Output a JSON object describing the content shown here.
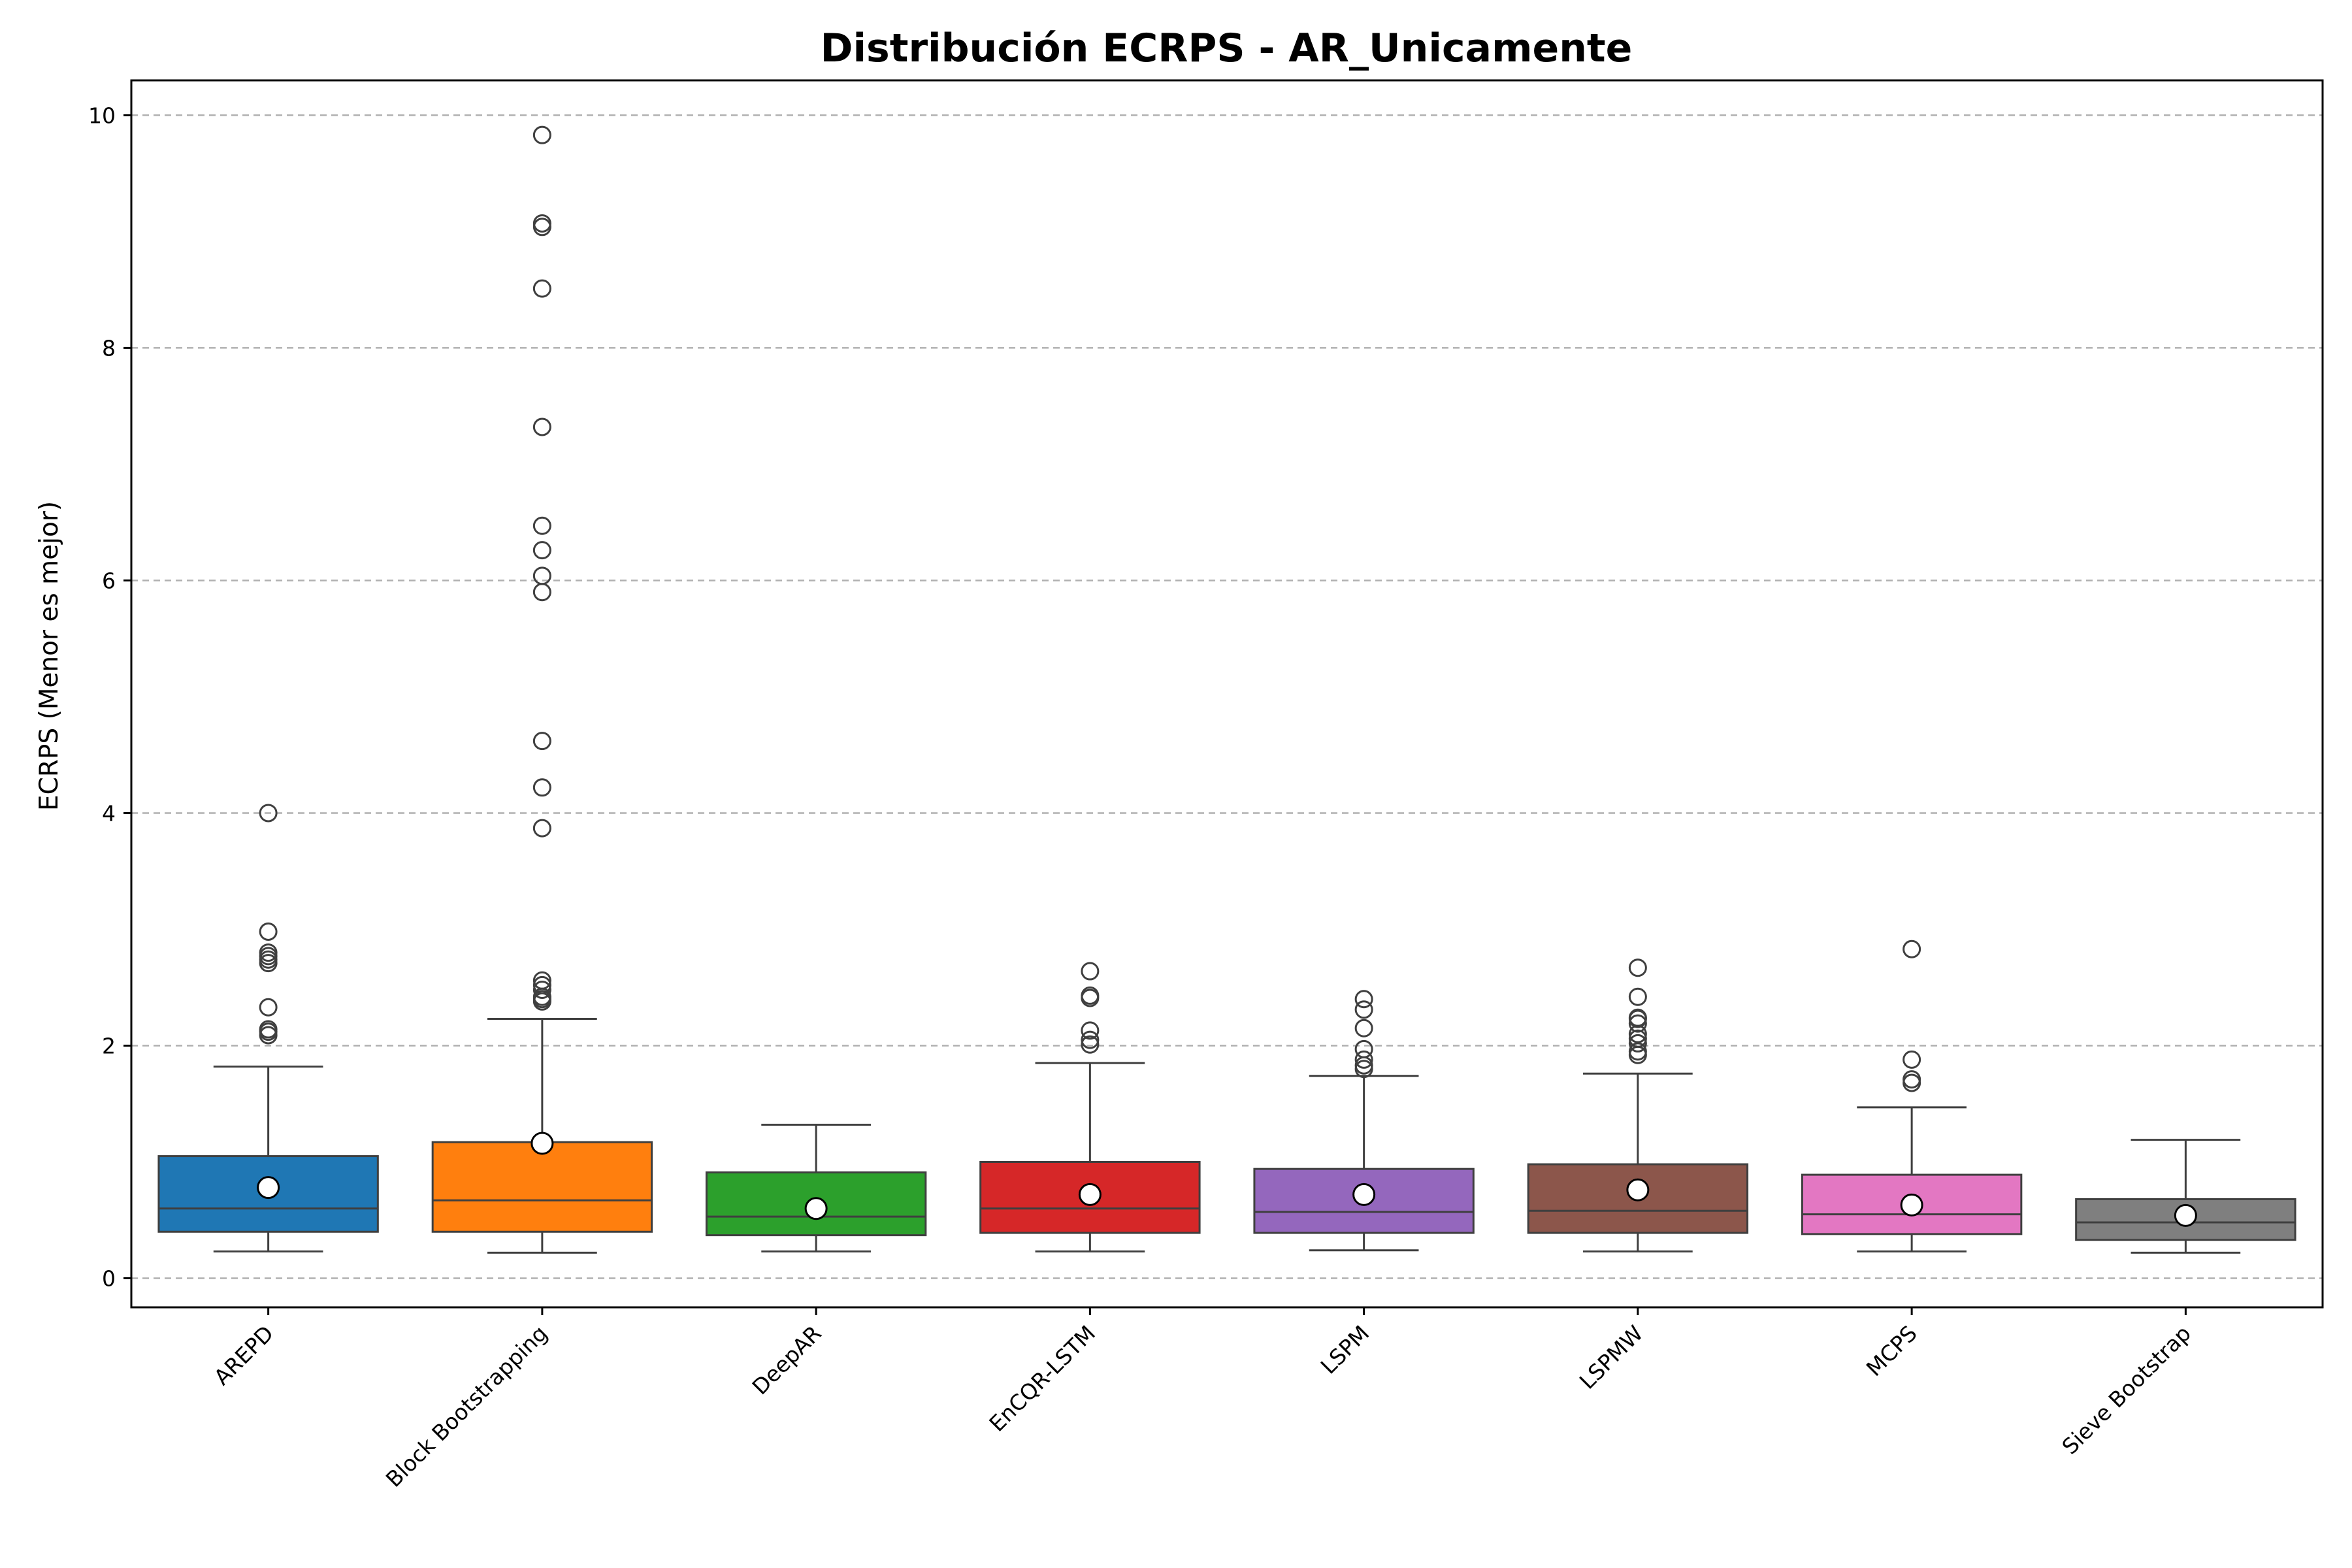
{
  "chart_data": {
    "type": "box",
    "title": "Distribución ECRPS - AR_Unicamente",
    "xlabel": "",
    "ylabel": "ECRPS (Menor es mejor)",
    "ylim": [
      -0.25,
      10.3
    ],
    "yticks": [
      0,
      2,
      4,
      6,
      8,
      10
    ],
    "grid": "y-dashed",
    "categories": [
      "AREPD",
      "Block Bootstrapping",
      "DeepAR",
      "EnCQR-LSTM",
      "LSPM",
      "LSPMW",
      "MCPS",
      "Sieve Bootstrap"
    ],
    "series": [
      {
        "category": "AREPD",
        "color": "#1f77b4",
        "whisker_low": 0.23,
        "q1": 0.4,
        "median": 0.6,
        "q3": 1.05,
        "whisker_high": 1.82,
        "mean": 0.78,
        "outliers": [
          2.09,
          2.12,
          2.14,
          2.33,
          2.71,
          2.74,
          2.77,
          2.8,
          2.98,
          4.0
        ]
      },
      {
        "category": "Block Bootstrapping",
        "color": "#ff7f0e",
        "whisker_low": 0.22,
        "q1": 0.4,
        "median": 0.67,
        "q3": 1.17,
        "whisker_high": 2.23,
        "mean": 1.16,
        "outliers": [
          2.38,
          2.4,
          2.42,
          2.48,
          2.52,
          2.56,
          3.87,
          4.22,
          4.62,
          5.9,
          6.04,
          6.26,
          6.47,
          7.32,
          8.51,
          9.04,
          9.07,
          9.83
        ]
      },
      {
        "category": "DeepAR",
        "color": "#2ca02c",
        "whisker_low": 0.23,
        "q1": 0.37,
        "median": 0.53,
        "q3": 0.91,
        "whisker_high": 1.32,
        "mean": 0.6,
        "outliers": []
      },
      {
        "category": "EnCQR-LSTM",
        "color": "#d62728",
        "whisker_low": 0.23,
        "q1": 0.39,
        "median": 0.6,
        "q3": 1.0,
        "whisker_high": 1.85,
        "mean": 0.72,
        "outliers": [
          2.01,
          2.05,
          2.13,
          2.41,
          2.43,
          2.64
        ]
      },
      {
        "category": "LSPM",
        "color": "#9467bd",
        "whisker_low": 0.24,
        "q1": 0.39,
        "median": 0.57,
        "q3": 0.94,
        "whisker_high": 1.74,
        "mean": 0.72,
        "outliers": [
          1.8,
          1.83,
          1.88,
          1.97,
          2.15,
          2.31,
          2.4
        ]
      },
      {
        "category": "LSPMW",
        "color": "#8c564b",
        "whisker_low": 0.23,
        "q1": 0.39,
        "median": 0.58,
        "q3": 0.98,
        "whisker_high": 1.76,
        "mean": 0.76,
        "outliers": [
          1.92,
          1.95,
          2.02,
          2.06,
          2.1,
          2.19,
          2.23,
          2.24,
          2.42,
          2.67
        ]
      },
      {
        "category": "MCPS",
        "color": "#e377c2",
        "whisker_low": 0.23,
        "q1": 0.38,
        "median": 0.55,
        "q3": 0.89,
        "whisker_high": 1.47,
        "mean": 0.63,
        "outliers": [
          1.68,
          1.71,
          1.88,
          2.83
        ]
      },
      {
        "category": "Sieve Bootstrap",
        "color": "#7f7f7f",
        "whisker_low": 0.22,
        "q1": 0.33,
        "median": 0.48,
        "q3": 0.68,
        "whisker_high": 1.19,
        "mean": 0.54,
        "outliers": []
      }
    ]
  }
}
